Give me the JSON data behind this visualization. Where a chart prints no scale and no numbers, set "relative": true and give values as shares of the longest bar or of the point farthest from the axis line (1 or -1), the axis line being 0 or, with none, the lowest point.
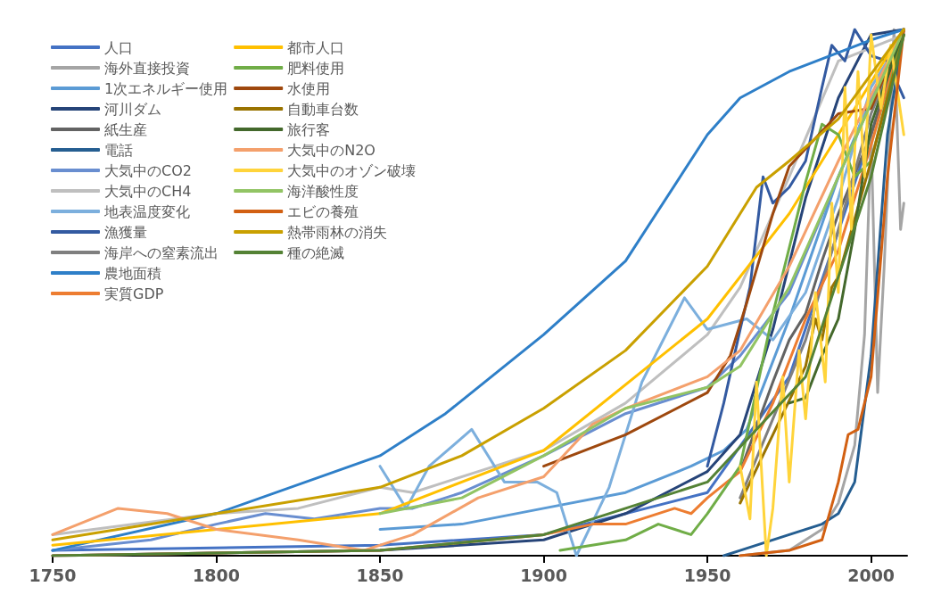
{
  "chart_data": {
    "type": "line",
    "relative": true,
    "xlim": [
      1750,
      2011
    ],
    "xticks": [
      1750,
      1800,
      1850,
      1900,
      1950,
      2000
    ],
    "legend": "top left",
    "grid": false,
    "marker": "none",
    "line_style": "solid",
    "series": [
      {
        "name": "人口",
        "color": "#4472c4",
        "x": [
          1750,
          1850,
          1900,
          1950,
          1975,
          2000,
          2010
        ],
        "values": [
          0.01,
          0.02,
          0.04,
          0.12,
          0.34,
          0.8,
          1.0
        ]
      },
      {
        "name": "海外直接投資",
        "color": "#a5a5a5",
        "x": [
          1960,
          1975,
          1985,
          1990,
          1995,
          1998,
          2000,
          2002,
          2004,
          2007,
          2009,
          2010
        ],
        "values": [
          0,
          0.01,
          0.05,
          0.1,
          0.21,
          0.42,
          0.8,
          0.31,
          0.55,
          1.0,
          0.62,
          0.67
        ]
      },
      {
        "name": "1次エネルギー使用",
        "color": "#5b9bd5",
        "x": [
          1850,
          1875,
          1900,
          1925,
          1945,
          1955,
          1962,
          1975,
          1990,
          2000,
          2010
        ],
        "values": [
          0.05,
          0.06,
          0.09,
          0.12,
          0.17,
          0.2,
          0.24,
          0.45,
          0.72,
          0.87,
          1.0
        ]
      },
      {
        "name": "河川ダム",
        "color": "#264478",
        "x": [
          1750,
          1850,
          1900,
          1925,
          1950,
          1960,
          1970,
          1980,
          1990,
          2000,
          2010
        ],
        "values": [
          0,
          0.01,
          0.03,
          0.08,
          0.16,
          0.23,
          0.43,
          0.68,
          0.87,
          0.99,
          1.0
        ]
      },
      {
        "name": "紙生産",
        "color": "#636363",
        "x": [
          1960,
          1970,
          1975,
          1980,
          1985,
          1990,
          2000,
          2010
        ],
        "values": [
          0.16,
          0.33,
          0.41,
          0.46,
          0.56,
          0.65,
          0.8,
          1.0
        ]
      },
      {
        "name": "電話",
        "color": "#255e91",
        "x": [
          1955,
          1960,
          1975,
          1985,
          1990,
          1995,
          2000,
          2005,
          2010
        ],
        "values": [
          0,
          0.01,
          0.04,
          0.06,
          0.08,
          0.14,
          0.38,
          0.8,
          1.0
        ]
      },
      {
        "name": "大気中のCO2",
        "color": "#698ed0",
        "x": [
          1750,
          1780,
          1800,
          1815,
          1830,
          1850,
          1860,
          1875,
          1900,
          1925,
          1950,
          1960,
          1975,
          1990,
          2010
        ],
        "values": [
          0.01,
          0.03,
          0.06,
          0.08,
          0.07,
          0.09,
          0.09,
          0.12,
          0.19,
          0.27,
          0.32,
          0.38,
          0.5,
          0.72,
          1.0
        ]
      },
      {
        "name": "大気中のCH4",
        "color": "#bfbfbf",
        "x": [
          1750,
          1775,
          1800,
          1825,
          1850,
          1860,
          1880,
          1900,
          1925,
          1950,
          1960,
          1975,
          1990,
          2010
        ],
        "values": [
          0.04,
          0.06,
          0.08,
          0.09,
          0.13,
          0.12,
          0.16,
          0.2,
          0.29,
          0.42,
          0.51,
          0.72,
          0.94,
          0.99
        ]
      },
      {
        "name": "地表温度変化",
        "color": "#7cafdd",
        "x": [
          1850,
          1858,
          1865,
          1878,
          1888,
          1898,
          1904,
          1910,
          1920,
          1930,
          1943,
          1950,
          1962,
          1970,
          1980,
          1990,
          2000,
          2010
        ],
        "values": [
          0.17,
          0.09,
          0.17,
          0.24,
          0.14,
          0.14,
          0.12,
          0,
          0.13,
          0.33,
          0.49,
          0.43,
          0.45,
          0.41,
          0.5,
          0.68,
          0.89,
          0.99
        ]
      },
      {
        "name": "漁獲量",
        "color": "#335aa1",
        "x": [
          1950,
          1955,
          1960,
          1963,
          1967,
          1970,
          1975,
          1980,
          1985,
          1988,
          1992,
          1995,
          2000,
          2005,
          2010
        ],
        "values": [
          0.17,
          0.29,
          0.43,
          0.51,
          0.72,
          0.67,
          0.7,
          0.75,
          0.89,
          0.97,
          0.94,
          1.0,
          0.95,
          0.94,
          0.87
        ]
      },
      {
        "name": "海岸への窒素流出",
        "color": "#7f7f7f",
        "x": [
          1960,
          1970,
          1980,
          1990,
          2000,
          2010
        ],
        "values": [
          0.11,
          0.26,
          0.41,
          0.62,
          0.84,
          0.99
        ]
      },
      {
        "name": "農地面積",
        "color": "#2e7fc8",
        "x": [
          1750,
          1800,
          1850,
          1870,
          1900,
          1925,
          1950,
          1960,
          1975,
          2000,
          2010
        ],
        "values": [
          0.01,
          0.08,
          0.19,
          0.27,
          0.42,
          0.56,
          0.8,
          0.87,
          0.92,
          0.98,
          1.0
        ]
      },
      {
        "name": "実質GDP",
        "color": "#ed7d31",
        "x": [
          1750,
          1850,
          1900,
          1915,
          1925,
          1940,
          1945,
          1950,
          1960,
          1970,
          1980,
          1990,
          2000,
          2010
        ],
        "values": [
          0,
          0.01,
          0.04,
          0.06,
          0.06,
          0.09,
          0.08,
          0.11,
          0.16,
          0.29,
          0.45,
          0.58,
          0.78,
          1.0
        ]
      },
      {
        "name": "都市人口",
        "color": "#ffc000",
        "x": [
          1750,
          1850,
          1900,
          1950,
          1975,
          2000,
          2010
        ],
        "values": [
          0.02,
          0.08,
          0.2,
          0.45,
          0.65,
          0.9,
          1.0
        ]
      },
      {
        "name": "肥料使用",
        "color": "#70ad47",
        "x": [
          1905,
          1925,
          1935,
          1945,
          1950,
          1960,
          1970,
          1980,
          1985,
          1990,
          1995,
          2000,
          2010
        ],
        "values": [
          0.01,
          0.03,
          0.06,
          0.04,
          0.08,
          0.17,
          0.46,
          0.71,
          0.82,
          0.8,
          0.72,
          0.75,
          1.0
        ]
      },
      {
        "name": "水使用",
        "color": "#9e480e",
        "x": [
          1900,
          1925,
          1950,
          1957,
          1962,
          1970,
          1975,
          1990,
          2000,
          2010
        ],
        "values": [
          0.17,
          0.23,
          0.31,
          0.38,
          0.48,
          0.65,
          0.74,
          0.84,
          0.85,
          1.0
        ]
      },
      {
        "name": "自動車台数",
        "color": "#997300",
        "x": [
          1960,
          1970,
          1980,
          1983,
          1985,
          1988,
          1990,
          2000,
          2010
        ],
        "values": [
          0.1,
          0.23,
          0.36,
          0.45,
          0.41,
          0.51,
          0.53,
          0.75,
          0.99
        ]
      },
      {
        "name": "旅行客",
        "color": "#43682b",
        "x": [
          1975,
          1980,
          1985,
          1990,
          1995,
          2000,
          2010
        ],
        "values": [
          0.29,
          0.3,
          0.38,
          0.45,
          0.62,
          0.82,
          1.0
        ]
      },
      {
        "name": "大気中のN2O",
        "color": "#f4a06c",
        "x": [
          1750,
          1770,
          1785,
          1800,
          1825,
          1845,
          1860,
          1880,
          1900,
          1915,
          1925,
          1950,
          1960,
          1975,
          1990,
          2010
        ],
        "values": [
          0.04,
          0.09,
          0.08,
          0.05,
          0.03,
          0.01,
          0.04,
          0.11,
          0.15,
          0.25,
          0.28,
          0.34,
          0.39,
          0.55,
          0.75,
          1.0
        ]
      },
      {
        "name": "大気中のオゾン破壊",
        "color": "#ffd43b",
        "x": [
          1960,
          1963,
          1965,
          1968,
          1970,
          1973,
          1975,
          1978,
          1980,
          1983,
          1986,
          1988,
          1990,
          1992,
          1994,
          1996,
          1998,
          2000,
          2003,
          2006,
          2010
        ],
        "values": [
          0.17,
          0.07,
          0.33,
          0,
          0.09,
          0.34,
          0.14,
          0.39,
          0.26,
          0.5,
          0.33,
          0.67,
          0.5,
          0.89,
          0.62,
          0.92,
          0.72,
          0.99,
          0.85,
          0.97,
          0.8
        ]
      },
      {
        "name": "海洋酸性度",
        "color": "#92c464",
        "x": [
          1850,
          1875,
          1900,
          1925,
          1950,
          1960,
          1975,
          1990,
          2010
        ],
        "values": [
          0.08,
          0.11,
          0.19,
          0.28,
          0.32,
          0.36,
          0.51,
          0.72,
          1.0
        ]
      },
      {
        "name": "エビの養殖",
        "color": "#d26012",
        "x": [
          1960,
          1975,
          1985,
          1990,
          1993,
          1996,
          2000,
          2005,
          2010
        ],
        "values": [
          0,
          0.01,
          0.03,
          0.14,
          0.23,
          0.24,
          0.34,
          0.72,
          1.0
        ]
      },
      {
        "name": "熱帯雨林の消失",
        "color": "#c9a000",
        "x": [
          1750,
          1800,
          1850,
          1875,
          1900,
          1925,
          1950,
          1965,
          1975,
          1990,
          2010
        ],
        "values": [
          0.03,
          0.08,
          0.13,
          0.19,
          0.28,
          0.39,
          0.55,
          0.7,
          0.75,
          0.83,
          1.0
        ]
      },
      {
        "name": "種の絶滅",
        "color": "#548235",
        "x": [
          1750,
          1850,
          1900,
          1950,
          1980,
          2000,
          2010
        ],
        "values": [
          0,
          0.01,
          0.04,
          0.14,
          0.34,
          0.72,
          0.99
        ]
      }
    ]
  }
}
